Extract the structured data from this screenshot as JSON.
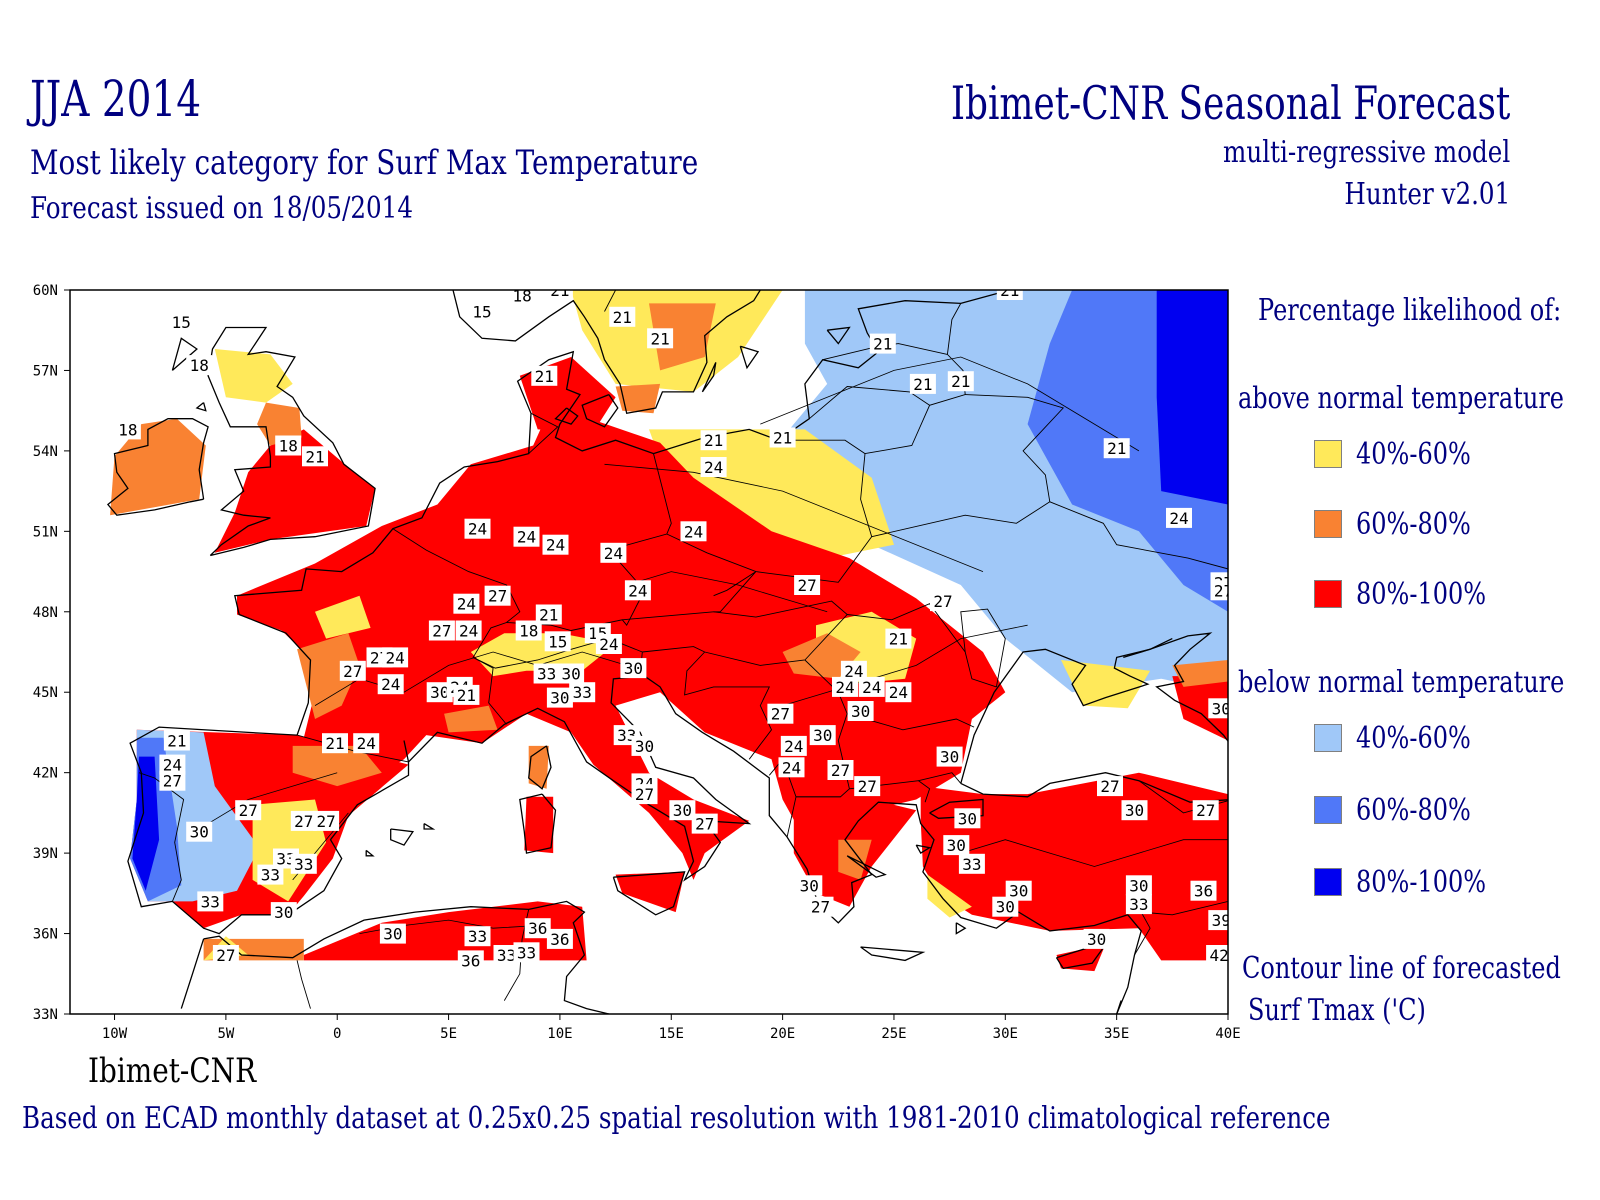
{
  "header": {
    "season": "JJA 2014",
    "subtitle": "Most likely category for Surf Max Temperature",
    "issued": "Forecast issued on 18/05/2014",
    "product": "Ibimet-CNR Seasonal Forecast",
    "model": "multi-regressive model",
    "version": "Hunter v2.01"
  },
  "legend": {
    "title": "Percentage likelihood of:",
    "above_label": "above normal temperature",
    "below_label": "below normal temperature",
    "above": [
      {
        "label": "40%-60%",
        "color": "#ffe95a"
      },
      {
        "label": "60%-80%",
        "color": "#f98232"
      },
      {
        "label": "80%-100%",
        "color": "#ff0000"
      }
    ],
    "below": [
      {
        "label": "40%-60%",
        "color": "#a0c8f8"
      },
      {
        "label": "60%-80%",
        "color": "#5078f8"
      },
      {
        "label": "80%-100%",
        "color": "#0000f0"
      }
    ],
    "contour_line1": "Contour line of forecasted",
    "contour_line2": "Surf Tmax ('C)"
  },
  "map": {
    "lon_range": [
      -12,
      40
    ],
    "lat_range": [
      33,
      60
    ],
    "lat_ticks": [
      "60N",
      "57N",
      "54N",
      "51N",
      "48N",
      "45N",
      "42N",
      "39N",
      "36N",
      "33N"
    ],
    "lon_ticks": [
      "10W",
      "5W",
      "0",
      "5E",
      "10E",
      "15E",
      "20E",
      "25E",
      "30E",
      "35E",
      "40E"
    ],
    "contour_labels": [
      {
        "text": "15",
        "lon": -7,
        "lat": 58.8
      },
      {
        "text": "18",
        "lon": -6.2,
        "lat": 57.2
      },
      {
        "text": "18",
        "lon": -9.4,
        "lat": 54.8
      },
      {
        "text": "18",
        "lon": -2.2,
        "lat": 54.2
      },
      {
        "text": "21",
        "lon": -1.0,
        "lat": 53.8
      },
      {
        "text": "21",
        "lon": 9.3,
        "lat": 56.8
      },
      {
        "text": "21",
        "lon": 12.8,
        "lat": 59.0
      },
      {
        "text": "21",
        "lon": 14.5,
        "lat": 58.2
      },
      {
        "text": "15",
        "lon": 6.5,
        "lat": 59.2
      },
      {
        "text": "18",
        "lon": 8.3,
        "lat": 59.8
      },
      {
        "text": "21",
        "lon": 10.0,
        "lat": 60.0
      },
      {
        "text": "21",
        "lon": 24.5,
        "lat": 58.0
      },
      {
        "text": "21",
        "lon": 30.2,
        "lat": 60.0
      },
      {
        "text": "21",
        "lon": 26.3,
        "lat": 56.5
      },
      {
        "text": "21",
        "lon": 28.0,
        "lat": 56.6
      },
      {
        "text": "21",
        "lon": 16.9,
        "lat": 54.4
      },
      {
        "text": "21",
        "lon": 20.0,
        "lat": 54.5
      },
      {
        "text": "21",
        "lon": 35.0,
        "lat": 54.1
      },
      {
        "text": "24",
        "lon": 16.9,
        "lat": 53.4
      },
      {
        "text": "24",
        "lon": 37.8,
        "lat": 51.5
      },
      {
        "text": "24",
        "lon": 6.3,
        "lat": 51.1
      },
      {
        "text": "24",
        "lon": 8.5,
        "lat": 50.8
      },
      {
        "text": "24",
        "lon": 9.8,
        "lat": 50.5
      },
      {
        "text": "24",
        "lon": 12.4,
        "lat": 50.2
      },
      {
        "text": "24",
        "lon": 16.0,
        "lat": 51.0
      },
      {
        "text": "24",
        "lon": 13.5,
        "lat": 48.8
      },
      {
        "text": "27",
        "lon": 21.1,
        "lat": 49.0
      },
      {
        "text": "27",
        "lon": 27.2,
        "lat": 48.4
      },
      {
        "text": "27",
        "lon": 39.8,
        "lat": 49.1
      },
      {
        "text": "24",
        "lon": 5.8,
        "lat": 48.3
      },
      {
        "text": "27",
        "lon": 7.2,
        "lat": 48.6
      },
      {
        "text": "21",
        "lon": 9.5,
        "lat": 47.9
      },
      {
        "text": "18",
        "lon": 8.6,
        "lat": 47.3
      },
      {
        "text": "15",
        "lon": 9.9,
        "lat": 46.9
      },
      {
        "text": "15",
        "lon": 11.7,
        "lat": 47.2
      },
      {
        "text": "24",
        "lon": 12.2,
        "lat": 46.8
      },
      {
        "text": "27",
        "lon": 4.7,
        "lat": 47.3
      },
      {
        "text": "24",
        "lon": 5.9,
        "lat": 47.3
      },
      {
        "text": "27",
        "lon": 1.9,
        "lat": 46.3
      },
      {
        "text": "24",
        "lon": 2.6,
        "lat": 46.3
      },
      {
        "text": "27",
        "lon": 0.7,
        "lat": 45.8
      },
      {
        "text": "24",
        "lon": 2.4,
        "lat": 45.3
      },
      {
        "text": "30",
        "lon": 4.6,
        "lat": 45.0
      },
      {
        "text": "24",
        "lon": 5.5,
        "lat": 45.2
      },
      {
        "text": "21",
        "lon": 5.8,
        "lat": 44.9
      },
      {
        "text": "33",
        "lon": 9.4,
        "lat": 45.7
      },
      {
        "text": "30",
        "lon": 10.5,
        "lat": 45.7
      },
      {
        "text": "30",
        "lon": 13.3,
        "lat": 45.9
      },
      {
        "text": "30",
        "lon": 10.0,
        "lat": 44.8
      },
      {
        "text": "33",
        "lon": 11.0,
        "lat": 45.0
      },
      {
        "text": "33",
        "lon": 13.0,
        "lat": 43.4
      },
      {
        "text": "30",
        "lon": 13.8,
        "lat": 43.0
      },
      {
        "text": "24",
        "lon": 23.2,
        "lat": 45.8
      },
      {
        "text": "24",
        "lon": 22.8,
        "lat": 45.2
      },
      {
        "text": "24",
        "lon": 24.0,
        "lat": 45.2
      },
      {
        "text": "24",
        "lon": 25.2,
        "lat": 45.0
      },
      {
        "text": "30",
        "lon": 23.5,
        "lat": 44.3
      },
      {
        "text": "21",
        "lon": 25.2,
        "lat": 47.0
      },
      {
        "text": "27",
        "lon": 19.9,
        "lat": 44.2
      },
      {
        "text": "30",
        "lon": 21.8,
        "lat": 43.4
      },
      {
        "text": "24",
        "lon": 20.5,
        "lat": 43.0
      },
      {
        "text": "24",
        "lon": 20.4,
        "lat": 42.2
      },
      {
        "text": "27",
        "lon": 22.6,
        "lat": 42.1
      },
      {
        "text": "27",
        "lon": 23.8,
        "lat": 41.5
      },
      {
        "text": "30",
        "lon": 27.5,
        "lat": 42.6
      },
      {
        "text": "21",
        "lon": -7.2,
        "lat": 43.2
      },
      {
        "text": "24",
        "lon": -7.4,
        "lat": 42.3
      },
      {
        "text": "27",
        "lon": -7.4,
        "lat": 41.7
      },
      {
        "text": "27",
        "lon": -4.0,
        "lat": 40.6
      },
      {
        "text": "30",
        "lon": -6.2,
        "lat": 39.8
      },
      {
        "text": "27",
        "lon": -1.5,
        "lat": 40.2
      },
      {
        "text": "27",
        "lon": -0.5,
        "lat": 40.2
      },
      {
        "text": "21",
        "lon": -0.1,
        "lat": 43.1
      },
      {
        "text": "24",
        "lon": 1.3,
        "lat": 43.1
      },
      {
        "text": "33",
        "lon": -2.3,
        "lat": 38.8
      },
      {
        "text": "33",
        "lon": -1.5,
        "lat": 38.6
      },
      {
        "text": "33",
        "lon": -3.0,
        "lat": 38.2
      },
      {
        "text": "33",
        "lon": -5.7,
        "lat": 37.2
      },
      {
        "text": "30",
        "lon": -2.4,
        "lat": 36.8
      },
      {
        "text": "27",
        "lon": -5.0,
        "lat": 35.2
      },
      {
        "text": "24",
        "lon": 13.8,
        "lat": 41.6
      },
      {
        "text": "27",
        "lon": 13.8,
        "lat": 41.2
      },
      {
        "text": "30",
        "lon": 15.5,
        "lat": 40.6
      },
      {
        "text": "27",
        "lon": 16.5,
        "lat": 40.1
      },
      {
        "text": "30",
        "lon": 28.3,
        "lat": 40.3
      },
      {
        "text": "30",
        "lon": 27.8,
        "lat": 39.3
      },
      {
        "text": "33",
        "lon": 28.5,
        "lat": 38.6
      },
      {
        "text": "30",
        "lon": 21.2,
        "lat": 37.8
      },
      {
        "text": "27",
        "lon": 21.7,
        "lat": 37.0
      },
      {
        "text": "27",
        "lon": 34.7,
        "lat": 41.5
      },
      {
        "text": "30",
        "lon": 35.8,
        "lat": 40.6
      },
      {
        "text": "27",
        "lon": 39.0,
        "lat": 40.6
      },
      {
        "text": "30",
        "lon": 30.6,
        "lat": 37.6
      },
      {
        "text": "30",
        "lon": 30.0,
        "lat": 37.0
      },
      {
        "text": "30",
        "lon": 36.0,
        "lat": 37.8
      },
      {
        "text": "33",
        "lon": 36.0,
        "lat": 37.1
      },
      {
        "text": "36",
        "lon": 38.9,
        "lat": 37.6
      },
      {
        "text": "39",
        "lon": 39.7,
        "lat": 36.5
      },
      {
        "text": "30",
        "lon": 34.1,
        "lat": 35.8
      },
      {
        "text": "42",
        "lon": 39.6,
        "lat": 35.2
      },
      {
        "text": "27",
        "lon": 39.8,
        "lat": 48.8
      },
      {
        "text": "30",
        "lon": 39.7,
        "lat": 44.4
      },
      {
        "text": "30",
        "lon": 2.5,
        "lat": 36.0
      },
      {
        "text": "33",
        "lon": 6.3,
        "lat": 35.9
      },
      {
        "text": "36",
        "lon": 9.0,
        "lat": 36.2
      },
      {
        "text": "36",
        "lon": 10.0,
        "lat": 35.8
      },
      {
        "text": "33",
        "lon": 7.6,
        "lat": 35.2
      },
      {
        "text": "33",
        "lon": 8.5,
        "lat": 35.3
      },
      {
        "text": "36",
        "lon": 6.0,
        "lat": 35.0
      }
    ]
  },
  "footer": {
    "logo": "Ibimet-CNR",
    "note": "Based on ECAD monthly dataset at 0.25x0.25 spatial resolution with 1981-2010 climatological reference"
  }
}
